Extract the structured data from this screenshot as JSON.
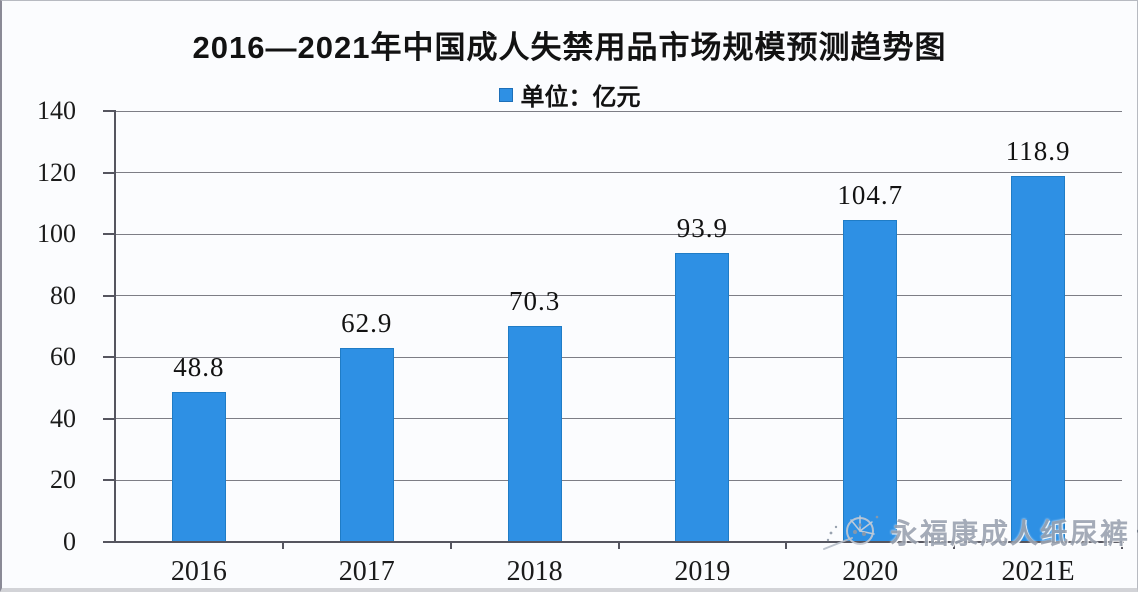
{
  "chart": {
    "title": "2016—2021年中国成人失禁用品市场规模预测趋势图",
    "legend_label": "单位：亿元",
    "watermark_text": "永福康成人纸尿裤",
    "watermark_mark": "¬"
  },
  "chart_data": {
    "type": "bar",
    "title": "2016—2021年中国成人失禁用品市场规模预测趋势图",
    "legend": "单位：亿元",
    "unit": "亿元",
    "categories": [
      "2016",
      "2017",
      "2018",
      "2019",
      "2020",
      "2021E"
    ],
    "values": [
      48.8,
      62.9,
      70.3,
      93.9,
      104.7,
      118.9
    ],
    "value_labels": [
      "48.8",
      "62.9",
      "70.3",
      "93.9",
      "104.7",
      "118.9"
    ],
    "ylim": [
      0,
      140
    ],
    "yticks": [
      0,
      20,
      40,
      60,
      80,
      100,
      120,
      140
    ],
    "grid": true,
    "legend_position": "top-center",
    "bar_color": "#2e90e4",
    "bar_border_color": "#1f7cc6",
    "gridline_color": "#7d7d85",
    "axis_color": "#55555f",
    "text_color": "#121212"
  }
}
